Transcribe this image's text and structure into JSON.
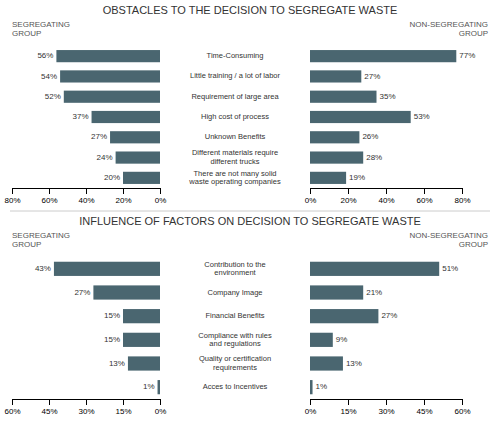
{
  "chart_data": [
    {
      "type": "bar",
      "orientation": "horizontal",
      "title": "OBSTACLES TO THE DECISION TO SEGREGATE WASTE",
      "categories": [
        "There are not many solid\nwaste operating companies",
        "Different materials require\ndifferent trucks",
        "Unknown Benefits",
        "High cost of process",
        "Requirement of large area",
        "Little training / a lot of labor",
        "Time-Consuming"
      ],
      "series": [
        {
          "name": "SEGREGATING\nGROUP",
          "color": "#4a6670",
          "values": [
            20,
            24,
            27,
            37,
            52,
            54,
            56
          ],
          "value_labels": [
            "20%",
            "24%",
            "27%",
            "37%",
            "52%",
            "54%",
            "56%"
          ]
        },
        {
          "name": "NON-SEGREGATING\nGROUP",
          "color": "#4a6670",
          "values": [
            19,
            28,
            26,
            53,
            35,
            27,
            77
          ],
          "value_labels": [
            "19%",
            "28%",
            "26%",
            "53%",
            "35%",
            "27%",
            "77%"
          ]
        }
      ],
      "xlim": [
        0,
        80
      ],
      "xticks": [
        {
          "value": 0,
          "label": "0%"
        },
        {
          "value": 20,
          "label": "20%"
        },
        {
          "value": 40,
          "label": "40%"
        },
        {
          "value": 60,
          "label": "60%"
        },
        {
          "value": 80,
          "label": "80%"
        }
      ],
      "data_labels": true
    },
    {
      "type": "bar",
      "orientation": "horizontal",
      "title": "INFLUENCE OF FACTORS ON DECISION TO SEGREGATE WASTE",
      "categories": [
        "Acces to Incentives",
        "Quality or certification\nrequirements",
        "Compliance with rules\nand regulations",
        "Financial Benefits",
        "Company Image",
        "Contribution to the\nenvironment"
      ],
      "series": [
        {
          "name": "SEGREGATING\nGROUP",
          "color": "#4a6670",
          "values": [
            1,
            13,
            15,
            15,
            27,
            43
          ],
          "value_labels": [
            "1%",
            "13%",
            "15%",
            "15%",
            "27%",
            "43%"
          ]
        },
        {
          "name": "NON-SEGREGATING\nGROUP",
          "color": "#4a6670",
          "values": [
            1,
            13,
            9,
            27,
            21,
            51
          ],
          "value_labels": [
            "1%",
            "13%",
            "9%",
            "27%",
            "21%",
            "51%"
          ]
        }
      ],
      "xlim": [
        0,
        60
      ],
      "xticks": [
        {
          "value": 0,
          "label": "0%"
        },
        {
          "value": 15,
          "label": "15%"
        },
        {
          "value": 30,
          "label": "30%"
        },
        {
          "value": 45,
          "label": "45%"
        },
        {
          "value": 60,
          "label": "60%"
        }
      ],
      "data_labels": true
    }
  ]
}
